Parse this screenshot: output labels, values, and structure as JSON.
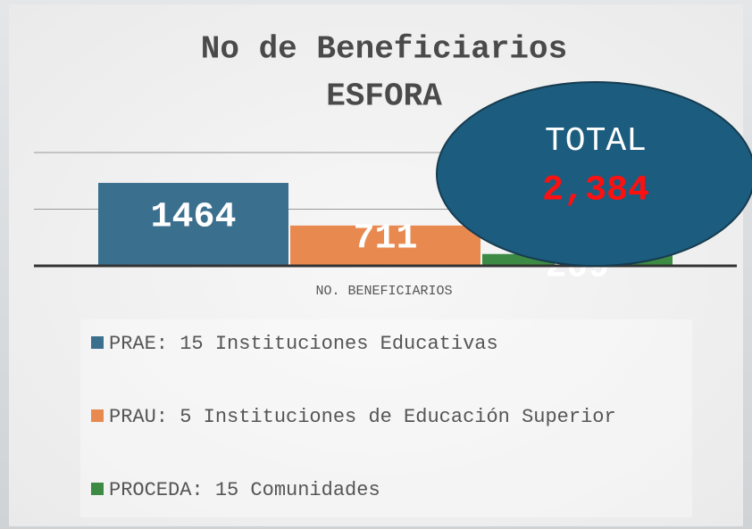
{
  "chart_data": {
    "type": "bar",
    "title": "No de Beneficiarios",
    "subtitle": "ESFORA",
    "categories": [
      "NO. BENEFICIARIOS"
    ],
    "series": [
      {
        "name": "PRAE: 15 Instituciones Educativas",
        "color": "#3b6f8e",
        "values": [
          1464
        ]
      },
      {
        "name": "PRAU: 5 Instituciones de Educación Superior",
        "color": "#e88a50",
        "values": [
          711
        ]
      },
      {
        "name": "PROCEDA: 15 Comunidades",
        "color": "#3d8a45",
        "values": [
          209
        ]
      }
    ],
    "ylim": [
      0,
      2000
    ],
    "yticks": [
      0,
      1000,
      2000
    ],
    "grid": true,
    "annotations": {
      "label": "TOTAL",
      "total": "2,384"
    }
  }
}
